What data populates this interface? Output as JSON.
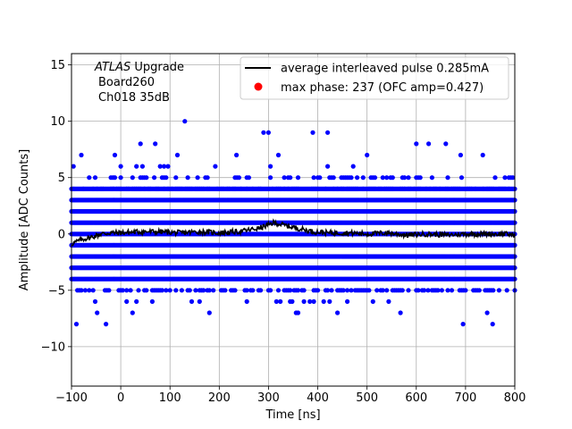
{
  "chart_data": {
    "type": "scatter",
    "xlabel": "Time [ns]",
    "ylabel": "Amplitude [ADC Counts]",
    "xlim": [
      -100,
      800
    ],
    "ylim": [
      -13.5,
      16
    ],
    "x_ticks": [
      -100,
      0,
      100,
      200,
      300,
      400,
      500,
      600,
      700,
      800
    ],
    "y_ticks": [
      -10,
      -5,
      0,
      5,
      10,
      15
    ],
    "grid": true,
    "legend_position": "top-right",
    "annotation": {
      "experiment": "ATLAS",
      "experiment_suffix": " Upgrade",
      "board": "Board260",
      "channel": "Ch018 35dB"
    },
    "series": [
      {
        "name": "average interleaved pulse 0.285mA",
        "kind": "line",
        "color": "#000000",
        "x_range": [
          -100,
          800
        ],
        "points": [
          [
            -100,
            -0.9
          ],
          [
            -80,
            -0.5
          ],
          [
            -60,
            -0.3
          ],
          [
            -40,
            0.0
          ],
          [
            -20,
            0.1
          ],
          [
            0,
            0.1
          ],
          [
            40,
            0.2
          ],
          [
            80,
            0.2
          ],
          [
            120,
            0.1
          ],
          [
            160,
            0.2
          ],
          [
            200,
            0.1
          ],
          [
            240,
            0.2
          ],
          [
            280,
            0.5
          ],
          [
            300,
            0.8
          ],
          [
            310,
            1.0
          ],
          [
            330,
            0.8
          ],
          [
            360,
            0.5
          ],
          [
            390,
            0.2
          ],
          [
            420,
            0.1
          ],
          [
            460,
            0.1
          ],
          [
            500,
            0.0
          ],
          [
            540,
            0.1
          ],
          [
            580,
            -0.1
          ],
          [
            620,
            0.0
          ],
          [
            660,
            -0.1
          ],
          [
            700,
            0.0
          ],
          [
            740,
            0.0
          ],
          [
            780,
            0.0
          ],
          [
            800,
            -0.1
          ]
        ]
      },
      {
        "name": "max phase: 237 (OFC amp=0.427)",
        "kind": "marker",
        "color": "#ff0000"
      },
      {
        "name": "",
        "kind": "scatter",
        "color": "#0000ff",
        "x_range": [
          -100,
          800
        ],
        "dense_levels": [
          -4,
          -3,
          -2,
          -1,
          0,
          1,
          2,
          3,
          4
        ],
        "sparse_levels": {
          "-5": 0.55,
          "4": 0.55,
          "5": 0.28,
          "-6": 0.05,
          "6": 0.05,
          "-7": 0.02,
          "7": 0.01
        },
        "outliers": [
          [
            -90,
            -8
          ],
          [
            -30,
            -8
          ],
          [
            695,
            -8
          ],
          [
            755,
            -8
          ],
          [
            130,
            10
          ],
          [
            290,
            9
          ],
          [
            390,
            9
          ],
          [
            420,
            9
          ],
          [
            300,
            9
          ],
          [
            40,
            8
          ],
          [
            70,
            8
          ],
          [
            600,
            8
          ],
          [
            625,
            8
          ],
          [
            660,
            8
          ],
          [
            -80,
            7
          ],
          [
            115,
            7
          ],
          [
            235,
            7
          ],
          [
            500,
            7
          ],
          [
            690,
            7
          ],
          [
            735,
            7
          ]
        ]
      }
    ]
  }
}
